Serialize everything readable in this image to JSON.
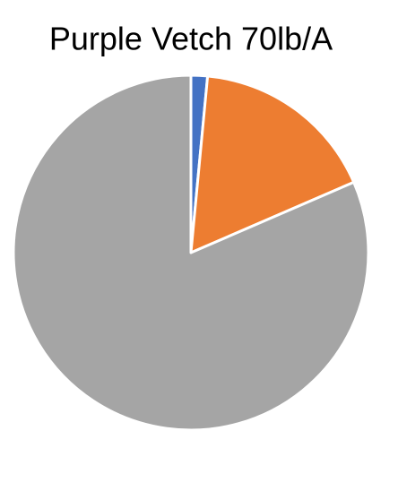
{
  "chart_data": {
    "type": "pie",
    "title": "Purple Vetch 70lb/A",
    "values": [
      1.5,
      17,
      81.5
    ],
    "colors": [
      "#4472c4",
      "#ed7d31",
      "#a5a5a5"
    ]
  }
}
